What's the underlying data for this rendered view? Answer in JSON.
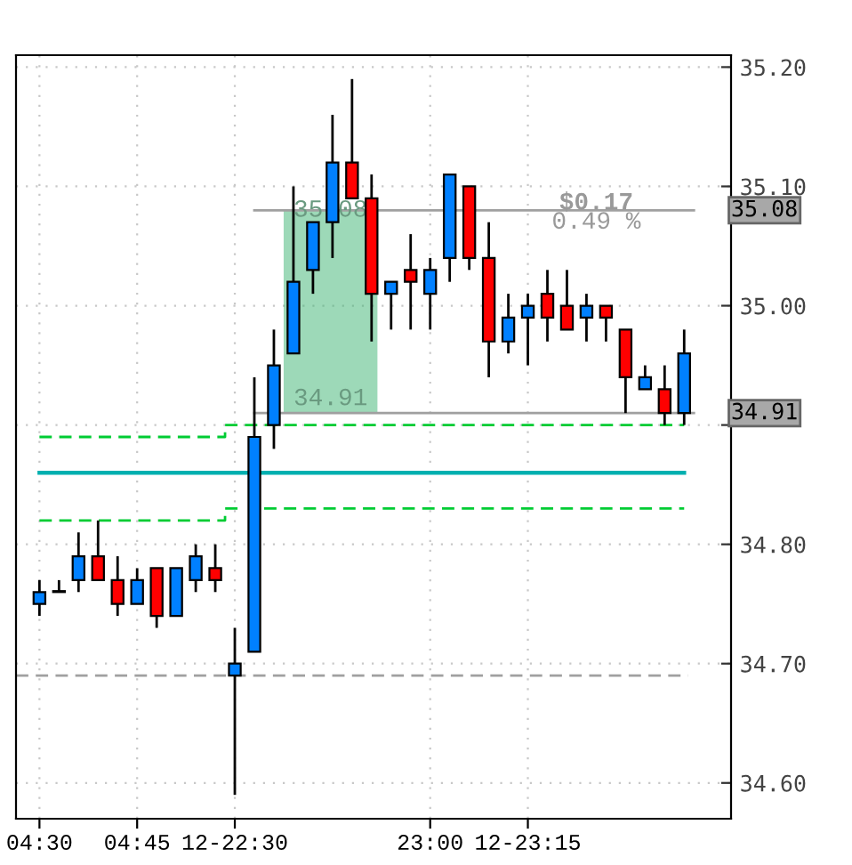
{
  "chart_data": {
    "type": "candlestick",
    "categories": [
      "04:30",
      null,
      null,
      null,
      null,
      "04:45",
      null,
      null,
      null,
      null,
      "12-22:30",
      null,
      null,
      null,
      null,
      null,
      null,
      null,
      null,
      null,
      "23:00",
      null,
      null,
      null,
      null,
      "12-23:15",
      null,
      null,
      null,
      null,
      null,
      null,
      null,
      null
    ],
    "ohlc": [
      [
        34.75,
        34.77,
        34.74,
        34.76
      ],
      [
        34.76,
        34.77,
        34.76,
        34.76
      ],
      [
        34.77,
        34.81,
        34.76,
        34.79
      ],
      [
        34.79,
        34.82,
        34.77,
        34.77
      ],
      [
        34.77,
        34.79,
        34.74,
        34.75
      ],
      [
        34.75,
        34.78,
        34.75,
        34.77
      ],
      [
        34.78,
        34.78,
        34.73,
        34.74
      ],
      [
        34.74,
        34.78,
        34.74,
        34.78
      ],
      [
        34.77,
        34.8,
        34.76,
        34.79
      ],
      [
        34.78,
        34.8,
        34.76,
        34.77
      ],
      [
        34.69,
        34.73,
        34.59,
        34.7
      ],
      [
        34.71,
        34.94,
        34.71,
        34.89
      ],
      [
        34.9,
        34.98,
        34.88,
        34.95
      ],
      [
        34.96,
        35.1,
        34.96,
        35.02
      ],
      [
        35.03,
        35.07,
        35.01,
        35.07
      ],
      [
        35.07,
        35.16,
        35.04,
        35.12
      ],
      [
        35.12,
        35.19,
        35.09,
        35.09
      ],
      [
        35.09,
        35.11,
        34.97,
        35.01
      ],
      [
        35.01,
        35.02,
        34.98,
        35.02
      ],
      [
        35.03,
        35.06,
        34.98,
        35.02
      ],
      [
        35.01,
        35.04,
        34.98,
        35.03
      ],
      [
        35.04,
        35.11,
        35.02,
        35.11
      ],
      [
        35.1,
        35.1,
        35.03,
        35.04
      ],
      [
        35.04,
        35.07,
        34.94,
        34.97
      ],
      [
        34.97,
        35.01,
        34.96,
        34.99
      ],
      [
        34.99,
        35.01,
        34.95,
        35.0
      ],
      [
        35.01,
        35.03,
        34.97,
        34.99
      ],
      [
        35.0,
        35.03,
        34.98,
        34.98
      ],
      [
        34.99,
        35.01,
        34.97,
        35.0
      ],
      [
        35.0,
        35.0,
        34.97,
        34.99
      ],
      [
        34.98,
        34.98,
        34.91,
        34.94
      ],
      [
        34.93,
        34.95,
        34.93,
        34.94
      ],
      [
        34.93,
        34.95,
        34.9,
        34.91
      ],
      [
        34.91,
        34.98,
        34.9,
        34.96
      ]
    ],
    "colors": [
      "#0080ff",
      "#0080ff",
      "#0080ff",
      "#ff0000",
      "#ff0000",
      "#0080ff",
      "#ff0000",
      "#0080ff",
      "#0080ff",
      "#ff0000",
      "#0080ff",
      "#0080ff",
      "#0080ff",
      "#0080ff",
      "#0080ff",
      "#0080ff",
      "#ff0000",
      "#ff0000",
      "#0080ff",
      "#ff0000",
      "#0080ff",
      "#0080ff",
      "#ff0000",
      "#ff0000",
      "#0080ff",
      "#0080ff",
      "#ff0000",
      "#ff0000",
      "#0080ff",
      "#ff0000",
      "#ff0000",
      "#0080ff",
      "#ff0000",
      "#0080ff"
    ],
    "series": [
      {
        "type": "step",
        "color": "#00cc33",
        "line_style": "dashed",
        "values": [
          34.89,
          34.89,
          34.89,
          34.89,
          34.89,
          34.89,
          34.89,
          34.89,
          34.89,
          34.89,
          34.9,
          34.9,
          34.9,
          34.9,
          34.9,
          34.9,
          34.9,
          34.9,
          34.9,
          34.9,
          34.9,
          34.9,
          34.9,
          34.9,
          34.9,
          34.9,
          34.9,
          34.9,
          34.9,
          34.9,
          34.9,
          34.9,
          34.9,
          34.9
        ]
      },
      {
        "type": "step",
        "color": "#00b0b0",
        "line_style": "solid",
        "values": [
          34.86,
          34.86,
          34.86,
          34.86,
          34.86,
          34.86,
          34.86,
          34.86,
          34.86,
          34.86,
          34.86,
          34.86,
          34.86,
          34.86,
          34.86,
          34.86,
          34.86,
          34.86,
          34.86,
          34.86,
          34.86,
          34.86,
          34.86,
          34.86,
          34.86,
          34.86,
          34.86,
          34.86,
          34.86,
          34.86,
          34.86,
          34.86,
          34.86,
          34.86
        ]
      },
      {
        "type": "step",
        "color": "#00cc33",
        "line_style": "dashed",
        "values": [
          34.82,
          34.82,
          34.82,
          34.82,
          34.82,
          34.82,
          34.82,
          34.82,
          34.82,
          34.82,
          34.83,
          null,
          34.83,
          34.83,
          34.83,
          34.83,
          34.83,
          34.83,
          34.83,
          34.83,
          34.83,
          34.83,
          34.83,
          34.83,
          34.83,
          34.83,
          34.83,
          34.83,
          34.83,
          34.83,
          34.83,
          34.83,
          34.83,
          34.83
        ]
      }
    ],
    "ref_lines": [
      {
        "axis": "y",
        "value": 34.69,
        "color": "#a0a0a0",
        "line_style": "dashed"
      },
      {
        "axis": "y",
        "value": 35.08,
        "label": "35.08",
        "color": "#a0a0a0",
        "line_style": "solid"
      },
      {
        "axis": "y",
        "value": 34.91,
        "label": "34.91",
        "color": "#a0a0a0",
        "line_style": "solid"
      }
    ],
    "annotations": [
      {
        "text": "$0.17",
        "y": 35.08
      },
      {
        "text": "0.49 %",
        "y": 35.08
      },
      {
        "text": "35.08",
        "y": 35.08
      },
      {
        "text": "34.91",
        "y": 34.91
      }
    ],
    "ylim": [
      34.57,
      35.21
    ],
    "yticks": [
      {
        "value": 34.6,
        "label": "34.60"
      },
      {
        "value": 34.7,
        "label": "34.70"
      },
      {
        "value": 34.8,
        "label": "34.80"
      },
      {
        "value": 34.9,
        "label": null
      },
      {
        "value": 35.0,
        "label": "35.00"
      },
      {
        "value": 35.1,
        "label": "35.10"
      },
      {
        "value": 35.2,
        "label": "35.20"
      }
    ],
    "grid": true
  }
}
